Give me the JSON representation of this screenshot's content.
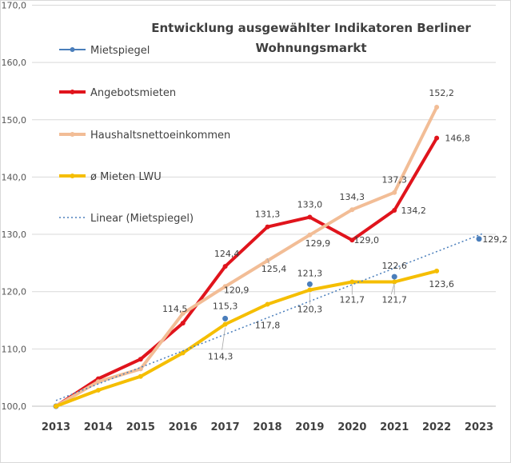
{
  "chart_data": {
    "type": "line",
    "title_lines": [
      "Entwicklung ausgewählter Indikatoren Berliner",
      "Wohnungsmarkt"
    ],
    "categories": [
      "2013",
      "2014",
      "2015",
      "2016",
      "2017",
      "2018",
      "2019",
      "2020",
      "2021",
      "2022",
      "2023"
    ],
    "ylim": [
      100,
      170
    ],
    "yticks": [
      "100,0",
      "110,0",
      "120,0",
      "130,0",
      "140,0",
      "150,0",
      "160,0",
      "170,0"
    ],
    "grid": true,
    "legend_position": "top-left",
    "series": [
      {
        "name": "Mietspiegel",
        "color": "#4a7ebb",
        "style": "markers",
        "values": [
          100,
          null,
          null,
          null,
          115.3,
          null,
          121.3,
          null,
          122.6,
          null,
          129.2
        ],
        "labels": [
          null,
          null,
          null,
          null,
          "115,3",
          null,
          "121,3",
          null,
          "122,6",
          null,
          "129,2"
        ]
      },
      {
        "name": "Angebotsmieten",
        "color": "#e0141c",
        "style": "line",
        "values": [
          100,
          104.8,
          108.2,
          114.5,
          124.4,
          131.3,
          133.0,
          129.0,
          134.2,
          146.8,
          null
        ],
        "labels": [
          null,
          null,
          null,
          "114,5",
          "124,4",
          "131,3",
          "133,0",
          "129,0",
          "134,2",
          "146,8",
          null
        ]
      },
      {
        "name": "Haushaltsnettoeinkommen",
        "color": "#f2bd96",
        "style": "line",
        "values": [
          100,
          104.3,
          106.5,
          116.2,
          120.9,
          125.4,
          129.9,
          134.3,
          137.3,
          152.2,
          null
        ],
        "labels": [
          null,
          null,
          null,
          null,
          "120,9",
          "125,4",
          "129,9",
          "134,3",
          "137,3",
          "152,2",
          null
        ]
      },
      {
        "name": "ø Mieten LWU",
        "color": "#f5be00",
        "style": "line",
        "values": [
          100,
          102.8,
          105.2,
          109.3,
          114.3,
          117.8,
          120.3,
          121.7,
          121.7,
          123.6,
          null
        ],
        "labels": [
          null,
          null,
          null,
          null,
          "114,3",
          "117,8",
          "120,3",
          "121,7",
          "121,7",
          "123,6",
          null
        ]
      },
      {
        "name": "Linear (Mietspiegel)",
        "color": "#4a7ebb",
        "style": "trendline",
        "values": [
          101,
          null,
          null,
          null,
          null,
          null,
          null,
          null,
          null,
          null,
          130.2
        ],
        "labels": []
      }
    ]
  }
}
